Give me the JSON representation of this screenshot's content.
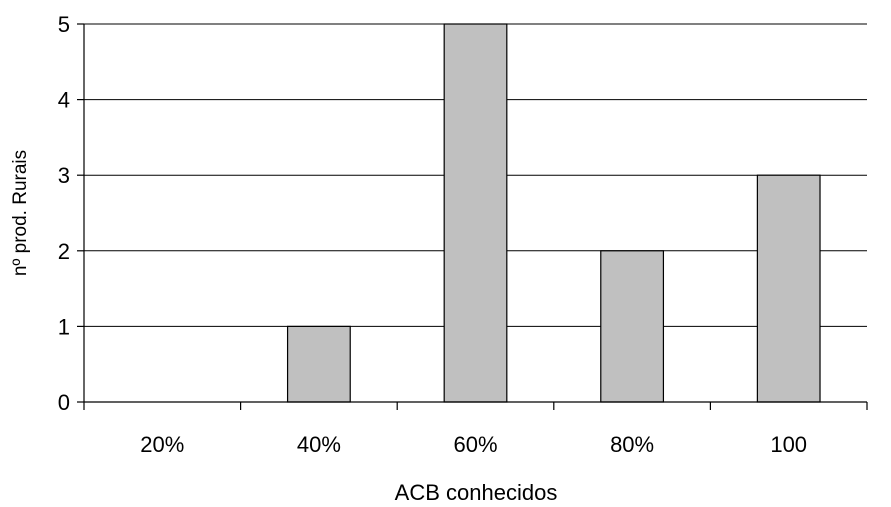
{
  "chart_data": {
    "type": "bar",
    "title": "",
    "xlabel": "ACB conhecidos",
    "ylabel": "nº prod. Rurais",
    "categories": [
      "20%",
      "40%",
      "60%",
      "80%",
      "100"
    ],
    "values": [
      0,
      1,
      5,
      2,
      3
    ],
    "ylim": [
      0,
      5
    ],
    "yticks": [
      "0",
      "1",
      "2",
      "3",
      "4",
      "5"
    ],
    "grid": true,
    "legend": "none",
    "bar_color": "#c0c0c0",
    "edge_color": "#000000"
  }
}
